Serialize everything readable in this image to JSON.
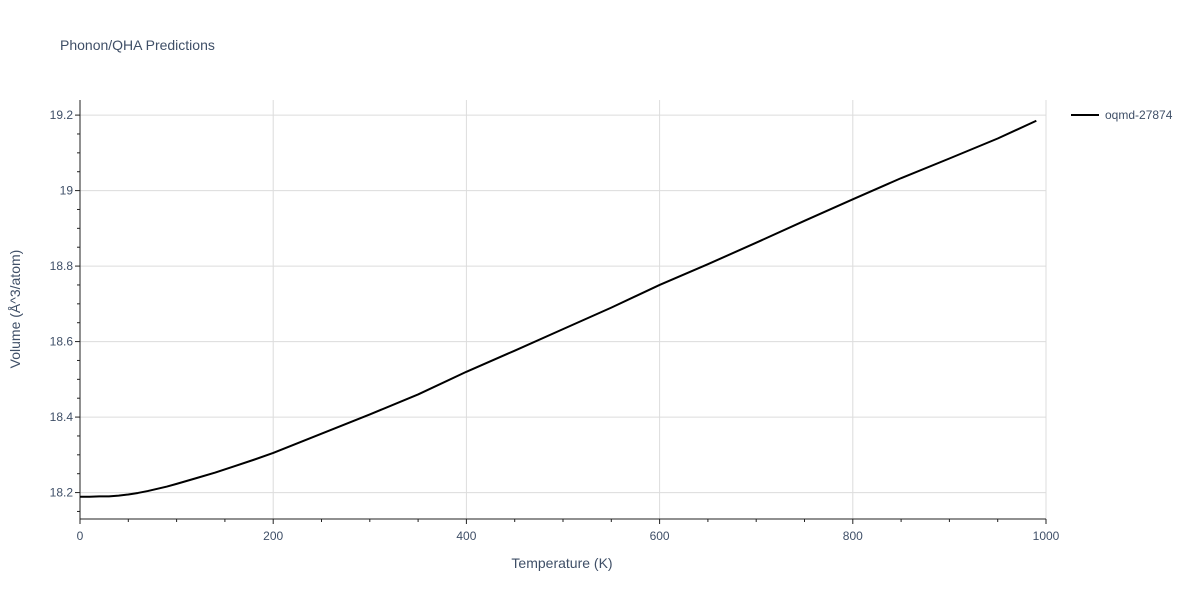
{
  "chart_data": {
    "type": "line",
    "title": "Phonon/QHA Predictions",
    "xlabel": "Temperature (K)",
    "ylabel": "Volume (Å^3/atom)",
    "xlim": [
      0,
      1000
    ],
    "ylim": [
      18.13,
      19.24
    ],
    "x_ticks": [
      0,
      200,
      400,
      600,
      800,
      1000
    ],
    "x_tick_labels": [
      "0",
      "200",
      "400",
      "600",
      "800",
      "1000"
    ],
    "y_ticks": [
      18.2,
      18.4,
      18.6,
      18.8,
      19.0,
      19.2
    ],
    "y_tick_labels": [
      "18.2",
      "18.4",
      "18.6",
      "18.8",
      "19",
      "19.2"
    ],
    "grid": true,
    "legend_position": "top-right",
    "series": [
      {
        "name": "oqmd-27874",
        "color": "#000000",
        "x": [
          0,
          10,
          20,
          30,
          40,
          50,
          60,
          70,
          80,
          90,
          100,
          120,
          140,
          160,
          180,
          200,
          250,
          300,
          350,
          400,
          450,
          500,
          550,
          600,
          650,
          700,
          750,
          800,
          850,
          900,
          950,
          990
        ],
        "y": [
          18.189,
          18.189,
          18.19,
          18.19,
          18.192,
          18.195,
          18.199,
          18.204,
          18.21,
          18.216,
          18.223,
          18.238,
          18.253,
          18.27,
          18.287,
          18.305,
          18.356,
          18.407,
          18.46,
          18.52,
          18.576,
          18.633,
          18.69,
          18.75,
          18.805,
          18.862,
          18.92,
          18.977,
          19.033,
          19.085,
          19.138,
          19.185
        ]
      }
    ]
  }
}
